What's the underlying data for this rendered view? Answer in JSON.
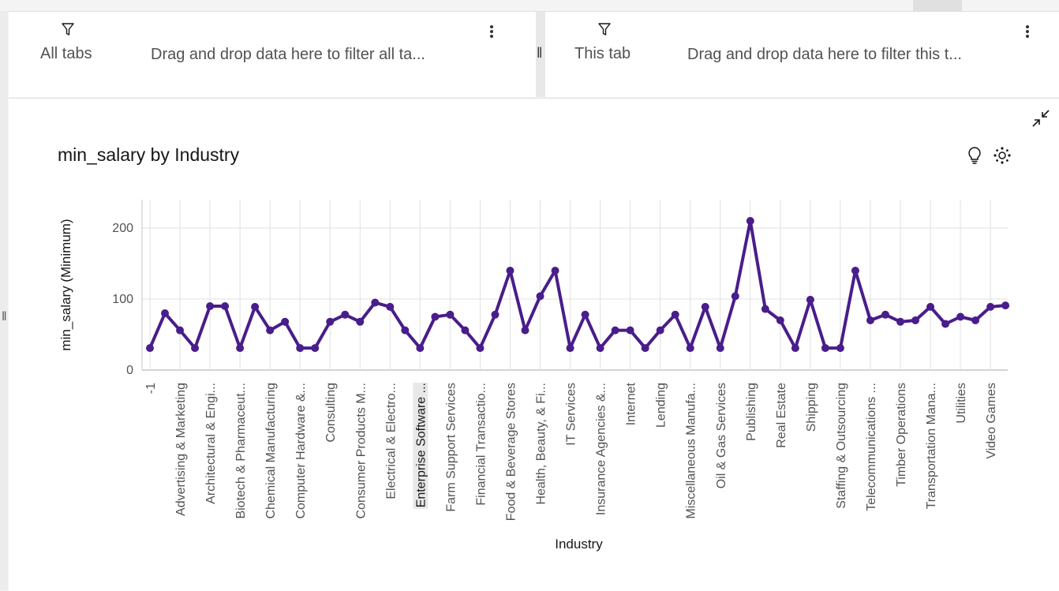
{
  "filters": {
    "all_tabs": {
      "title": "All tabs",
      "drop_text": "Drag and drop data here to filter all ta..."
    },
    "this_tab": {
      "title": "This tab",
      "drop_text": "Drag and drop data here to filter this t..."
    }
  },
  "icons": {
    "filter": "funnel-icon",
    "more": "overflow-menu-icon",
    "collapse": "minimize-icon",
    "insight": "lightbulb-icon",
    "settings": "ai-settings-icon"
  },
  "colors": {
    "series": "#491d8b",
    "grid": "#e0e0e0",
    "axis": "#8d8d8d",
    "highlight": "#e8e8e8"
  },
  "widget": {
    "title": "min_salary by Industry"
  },
  "chart_data": {
    "type": "line",
    "xlabel": "Industry",
    "ylabel": "min_salary (Minimum)",
    "ylim": [
      0,
      240
    ],
    "yticks": [
      0,
      100,
      200
    ],
    "grid": true,
    "highlighted_category": "Enterprise Software ...",
    "categories": [
      "-1",
      "",
      "Advertising & Marketing",
      "",
      "Architectural & Engi...",
      "",
      "Biotech & Pharmaceut...",
      "",
      "Chemical Manufacturing",
      "",
      "Computer Hardware &...",
      "",
      "Consulting",
      "",
      "Consumer Products M...",
      "",
      "Electrical & Electro...",
      "",
      "Enterprise Software ...",
      "",
      "Farm Support Services",
      "",
      "Financial Transactio...",
      "",
      "Food & Beverage Stores",
      "",
      "Health, Beauty, & Fi...",
      "",
      "IT Services",
      "",
      "Insurance Agencies &...",
      "",
      "Internet",
      "",
      "Lending",
      "",
      "Miscellaneous Manufa...",
      "",
      "Oil & Gas Services",
      "",
      "Publishing",
      "",
      "Real Estate",
      "",
      "Shipping",
      "",
      "Staffing & Outsourcing",
      "",
      "Telecommunications ...",
      "",
      "Timber Operations",
      "",
      "Transportation Mana...",
      "",
      "Utilities",
      "",
      "Video Games",
      ""
    ],
    "values": [
      31,
      80,
      56,
      31,
      90,
      90,
      31,
      89,
      56,
      68,
      31,
      31,
      68,
      78,
      68,
      95,
      89,
      56,
      31,
      75,
      78,
      56,
      31,
      78,
      140,
      56,
      104,
      140,
      31,
      78,
      31,
      56,
      56,
      31,
      56,
      78,
      31,
      89,
      31,
      104,
      210,
      86,
      70,
      31,
      99,
      31,
      31,
      140,
      70,
      78,
      68,
      70,
      89,
      65,
      75,
      70,
      89,
      91
    ]
  }
}
